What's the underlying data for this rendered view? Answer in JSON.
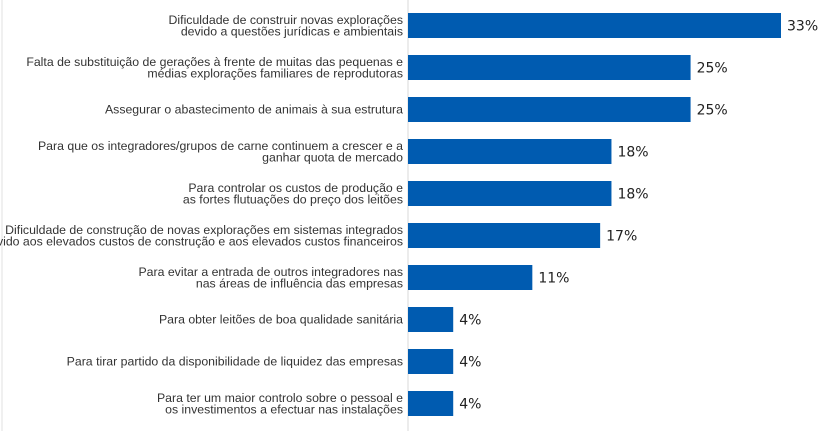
{
  "chart_data": {
    "type": "bar",
    "orientation": "horizontal",
    "categories": [
      [
        "Dificuldade de construir novas explorações",
        "devido a questões jurídicas e ambientais"
      ],
      [
        "Falta de substituição de gerações à frente de muitas das pequenas e",
        "médias explorações familiares de reprodutoras"
      ],
      [
        "Assegurar o abastecimento de animais à sua estrutura"
      ],
      [
        "Para que os integradores/grupos de carne continuem a crescer e a",
        "ganhar quota de mercado"
      ],
      [
        "Para controlar os custos de produção e",
        "as fortes flutuações do preço dos leitões"
      ],
      [
        "Dificuldade de construção de novas explorações em sistemas integrados",
        "devido aos elevados custos de construção e aos elevados custos financeiros"
      ],
      [
        "Para evitar a entrada de outros integradores nas",
        "nas áreas de influência das empresas"
      ],
      [
        "Para obter leitões de boa qualidade sanitária"
      ],
      [
        "Para tirar partido da disponibilidade de liquidez das empresas"
      ],
      [
        "Para ter um maior controlo sobre o pessoal e",
        "os investimentos a efectuar nas instalações"
      ]
    ],
    "values": [
      33,
      25,
      25,
      18,
      18,
      17,
      11,
      4,
      4,
      4
    ],
    "value_labels": [
      "33%",
      "25%",
      "25%",
      "18%",
      "18%",
      "17%",
      "11%",
      "4%",
      "4%",
      "4%"
    ],
    "unit": "%",
    "xlim": [
      0,
      33
    ],
    "grid": false,
    "bar_color": "#005bb0"
  }
}
